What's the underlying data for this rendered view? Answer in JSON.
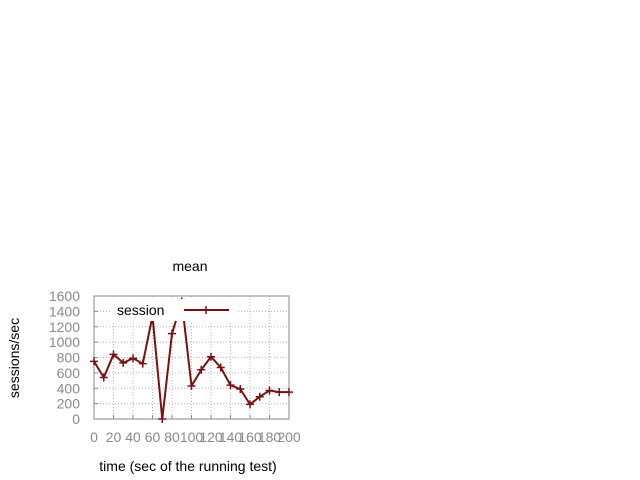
{
  "chart_data": {
    "type": "line",
    "title": "mean",
    "xlabel": "time (sec of the running test)",
    "ylabel": "sessions/sec",
    "xlim": [
      0,
      200
    ],
    "ylim": [
      0,
      1600
    ],
    "xticks": [
      0,
      20,
      40,
      60,
      80,
      100,
      120,
      140,
      160,
      180,
      200
    ],
    "yticks": [
      0,
      200,
      400,
      600,
      800,
      1000,
      1200,
      1400,
      1600
    ],
    "grid": true,
    "legend_position": "top-right",
    "series": [
      {
        "name": "session",
        "color": "#7a1010",
        "marker": "plus",
        "x": [
          0,
          10,
          20,
          30,
          40,
          50,
          60,
          70,
          80,
          90,
          100,
          110,
          120,
          130,
          140,
          150,
          160,
          170,
          180,
          190,
          200
        ],
        "y": [
          750,
          540,
          840,
          730,
          790,
          720,
          1340,
          0,
          1110,
          1530,
          430,
          640,
          810,
          670,
          440,
          390,
          190,
          290,
          370,
          350,
          350
        ]
      }
    ]
  }
}
